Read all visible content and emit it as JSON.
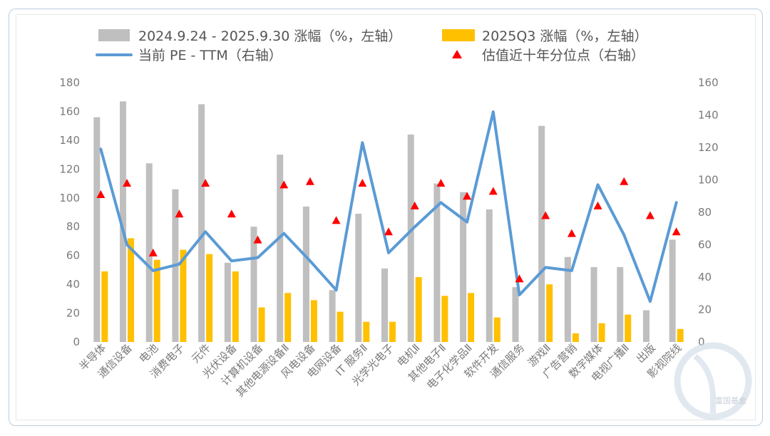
{
  "legend": {
    "series1": "2024.9.24 - 2025.9.30 涨幅（%，左轴）",
    "series2": "2025Q3 涨幅（%，左轴）",
    "series3": "当前 PE - TTM（右轴）",
    "series4": "估值近十年分位点（右轴）"
  },
  "watermark": "富国基金",
  "colors": {
    "gray_bar": "#bfbfbf",
    "yellow_bar": "#ffc000",
    "pe_line": "#5b9bd5",
    "marker": "#ff0000"
  },
  "chart_data": {
    "type": "bar",
    "categories": [
      "半导体",
      "通信设备",
      "电池",
      "消费电子",
      "元件",
      "光伏设备",
      "计算机设备",
      "其他电源设备Ⅱ",
      "风电设备",
      "电网设备",
      "IT 服务Ⅱ",
      "光学光电子",
      "电机Ⅱ",
      "其他电子Ⅱ",
      "电子化学品Ⅱ",
      "软件开发",
      "通信服务",
      "游戏Ⅱ",
      "广告营销",
      "数字媒体",
      "电视广播Ⅱ",
      "出版",
      "影视院线"
    ],
    "series": [
      {
        "name": "2024.9.24 - 2025.9.30 涨幅（%，左轴）",
        "type": "bar",
        "axis": "left",
        "values": [
          156,
          167,
          124,
          106,
          165,
          55,
          80,
          130,
          94,
          36,
          89,
          51,
          144,
          110,
          104,
          92,
          38,
          150,
          59,
          52,
          52,
          22,
          71
        ]
      },
      {
        "name": "2025Q3 涨幅（%，左轴）",
        "type": "bar",
        "axis": "left",
        "values": [
          49,
          72,
          57,
          64,
          61,
          49,
          24,
          34,
          29,
          21,
          14,
          14,
          45,
          32,
          34,
          17,
          0,
          40,
          6,
          13,
          19,
          0,
          9
        ]
      },
      {
        "name": "当前 PE - TTM（右轴）",
        "type": "line",
        "axis": "right",
        "values": [
          119,
          60,
          44,
          48,
          68,
          50,
          52,
          67,
          50,
          32,
          123,
          55,
          71,
          86,
          74,
          142,
          29,
          46,
          44,
          97,
          66,
          25,
          86
        ]
      },
      {
        "name": "估值近十年分位点（右轴）",
        "type": "scatter",
        "axis": "right",
        "values": [
          91,
          98,
          55,
          79,
          98,
          79,
          63,
          97,
          99,
          75,
          98,
          68,
          84,
          98,
          90,
          93,
          39,
          78,
          67,
          84,
          99,
          78,
          68
        ]
      }
    ],
    "ylim_left": [
      0,
      180
    ],
    "yticks_left": [
      0,
      20,
      40,
      60,
      80,
      100,
      120,
      140,
      160,
      180
    ],
    "ylim_right": [
      0,
      160
    ],
    "yticks_right": [
      0,
      20,
      40,
      60,
      80,
      100,
      120,
      140,
      160
    ],
    "legend_position": "top",
    "grid": false
  }
}
